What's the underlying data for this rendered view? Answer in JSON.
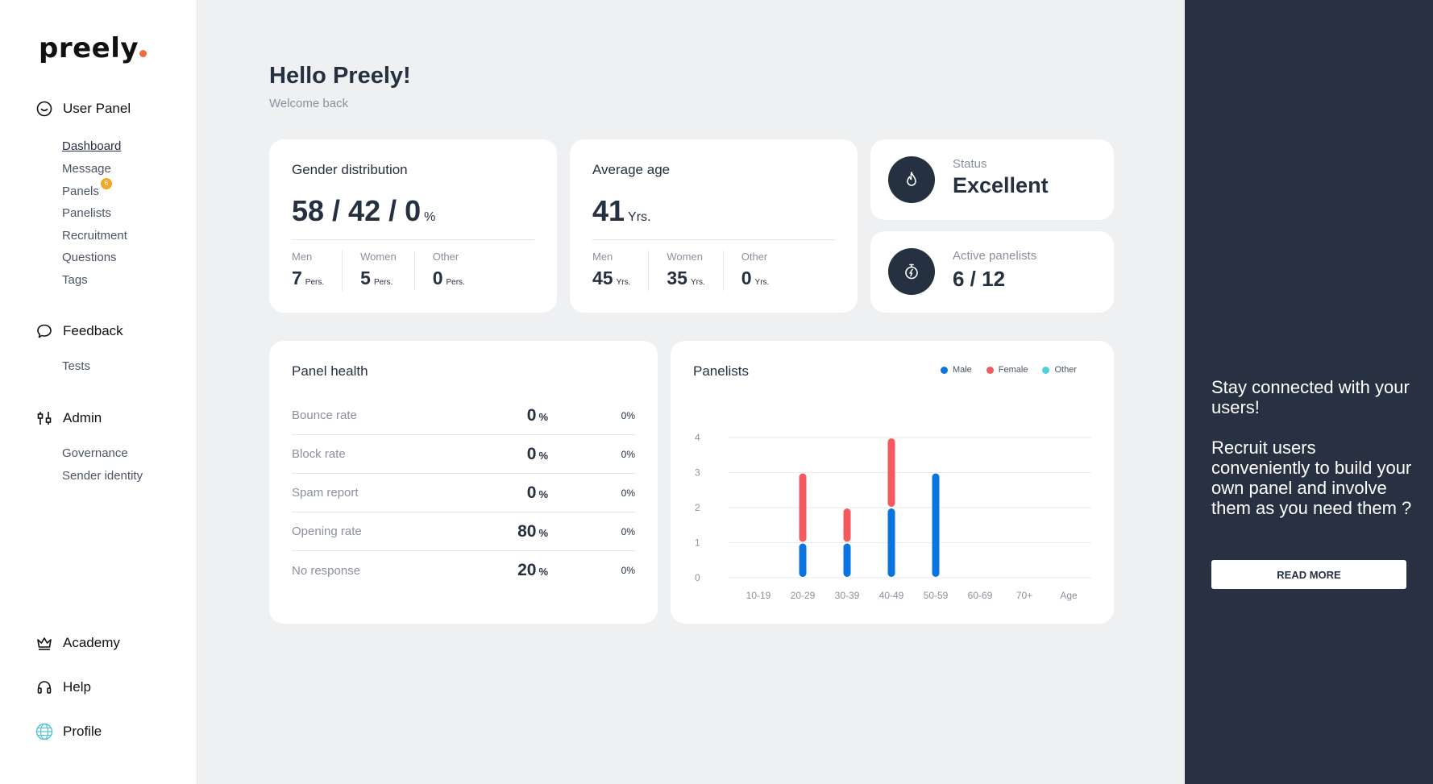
{
  "brand": {
    "name": "preely"
  },
  "sidebar": {
    "sections": [
      {
        "label": "User Panel",
        "icon": "smile-circle-icon"
      },
      {
        "label": "Feedback",
        "icon": "speech-bubble-icon"
      },
      {
        "label": "Admin",
        "icon": "sliders-icon"
      }
    ],
    "user_panel_items": [
      "Dashboard",
      "Message",
      "Panels",
      "Panelists",
      "Recruitment",
      "Questions",
      "Tags"
    ],
    "panels_badge": "6",
    "feedback_items": [
      "Tests"
    ],
    "admin_items": [
      "Governance",
      "Sender identity"
    ],
    "bottom": [
      {
        "label": "Academy",
        "icon": "crown-icon"
      },
      {
        "label": "Help",
        "icon": "headset-icon"
      },
      {
        "label": "Profile",
        "icon": "globe-avatar-icon"
      }
    ]
  },
  "header": {
    "title": "Hello Preely!",
    "subtitle": "Welcome back"
  },
  "gender": {
    "title": "Gender distribution",
    "value": "58 / 42 / 0",
    "unit": "%",
    "stats": [
      {
        "label": "Men",
        "value": "7",
        "unit": "Pers."
      },
      {
        "label": "Women",
        "value": "5",
        "unit": "Pers."
      },
      {
        "label": "Other",
        "value": "0",
        "unit": "Pers."
      }
    ]
  },
  "age": {
    "title": "Average age",
    "value": "41",
    "unit": "Yrs.",
    "stats": [
      {
        "label": "Men",
        "value": "45",
        "unit": "Yrs."
      },
      {
        "label": "Women",
        "value": "35",
        "unit": "Yrs."
      },
      {
        "label": "Other",
        "value": "0",
        "unit": "Yrs."
      }
    ]
  },
  "status": {
    "label": "Status",
    "value": "Excellent",
    "icon": "flame-icon"
  },
  "active": {
    "label": "Active panelists",
    "value": "6 / 12",
    "icon": "stopwatch-bolt-icon"
  },
  "health": {
    "title": "Panel health",
    "rows": [
      {
        "label": "Bounce rate",
        "value": "0",
        "unit": "%",
        "pct": "0%"
      },
      {
        "label": "Block rate",
        "value": "0",
        "unit": "%",
        "pct": "0%"
      },
      {
        "label": "Spam report",
        "value": "0",
        "unit": "%",
        "pct": "0%"
      },
      {
        "label": "Opening rate",
        "value": "80",
        "unit": "%",
        "pct": "0%"
      },
      {
        "label": "No response",
        "value": "20",
        "unit": "%",
        "pct": "0%"
      }
    ]
  },
  "chart_data": {
    "type": "bar",
    "title": "Panelists",
    "stacked": true,
    "categories": [
      "10-19",
      "20-29",
      "30-39",
      "40-49",
      "50-59",
      "60-69",
      "70+"
    ],
    "xlabel": "Age",
    "ylabel": "",
    "ylim": [
      0,
      4
    ],
    "yticks": [
      0,
      1,
      2,
      3,
      4
    ],
    "grid": true,
    "legend_position": "top-right",
    "series": [
      {
        "name": "Male",
        "color": "#0b74de",
        "values": [
          0,
          1,
          1,
          2,
          3,
          0,
          0
        ]
      },
      {
        "name": "Female",
        "color": "#f25a5f",
        "values": [
          0,
          2,
          1,
          2,
          0,
          0,
          0
        ]
      },
      {
        "name": "Other",
        "color": "#4fd1d9",
        "values": [
          0,
          0,
          0,
          0,
          0,
          0,
          0
        ]
      }
    ]
  },
  "promo": {
    "line1": "Stay connected with your users!",
    "line2": "Recruit users conveniently to build your own panel and involve them as you need them ?",
    "button": "READ MORE"
  }
}
